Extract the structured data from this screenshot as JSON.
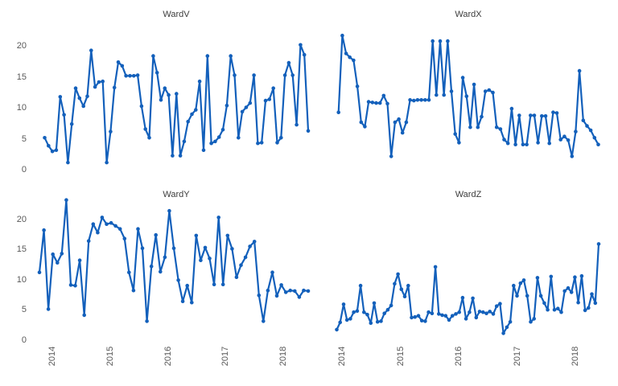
{
  "figure": {
    "background_color": "#ffffff",
    "line_color": "#1360bb",
    "marker_color": "#1360bb",
    "tick_label_color": "#595959",
    "title_color": "#3d3d3d"
  },
  "axes": {
    "y_tick_labels": [
      "0",
      "5",
      "10",
      "15",
      "20"
    ],
    "y_tick_values": [
      0,
      5,
      10,
      15,
      20
    ],
    "x_tick_labels": [
      "2014",
      "2015",
      "2016",
      "2017",
      "2018"
    ],
    "x_tick_values": [
      2014,
      2015,
      2016,
      2017,
      2018
    ],
    "x_tick_rotation": 90,
    "grid": false,
    "legend": false,
    "spines": false
  },
  "chart_data": [
    {
      "type": "line",
      "title": "WardV",
      "position": "top-left",
      "marker": "point",
      "x_start": 2013.87,
      "x_end": 2018.44,
      "ylim": [
        0,
        22
      ],
      "values": [
        5.2,
        3.9,
        3.0,
        3.2,
        11.8,
        8.9,
        1.2,
        7.4,
        13.2,
        11.6,
        10.3,
        11.9,
        19.3,
        13.4,
        14.2,
        14.3,
        1.2,
        6.2,
        13.3,
        17.4,
        16.8,
        15.2,
        15.2,
        15.2,
        15.3,
        10.3,
        6.6,
        5.2,
        18.4,
        15.7,
        11.3,
        13.2,
        12.1,
        2.3,
        12.3,
        2.3,
        4.6,
        7.8,
        9.0,
        9.7,
        14.3,
        3.2,
        18.4,
        4.3,
        4.6,
        5.3,
        6.5,
        10.4,
        18.4,
        15.3,
        5.2,
        9.4,
        10.1,
        10.8,
        15.3,
        4.3,
        4.4,
        11.2,
        11.4,
        13.2,
        4.4,
        5.2,
        15.3,
        17.3,
        15.3,
        7.3,
        20.2,
        18.6,
        6.3
      ]
    },
    {
      "type": "line",
      "title": "WardX",
      "position": "top-right",
      "marker": "point",
      "x_start": 2013.94,
      "x_end": 2018.39,
      "ylim": [
        0,
        22
      ],
      "values": [
        9.3,
        21.7,
        18.8,
        18.2,
        17.7,
        13.5,
        7.7,
        7.0,
        11.0,
        10.9,
        10.8,
        10.8,
        12.0,
        10.7,
        2.2,
        7.7,
        8.2,
        6.0,
        7.7,
        11.3,
        11.2,
        11.3,
        11.3,
        11.3,
        11.3,
        20.8,
        12.1,
        20.8,
        12.1,
        20.8,
        12.7,
        5.8,
        4.4,
        14.9,
        11.9,
        6.9,
        13.8,
        6.9,
        8.6,
        12.7,
        12.9,
        12.5,
        6.9,
        6.6,
        4.9,
        4.3,
        9.9,
        4.1,
        8.8,
        4.1,
        4.1,
        8.8,
        8.8,
        4.4,
        8.7,
        8.7,
        4.3,
        9.3,
        9.2,
        4.9,
        5.4,
        4.8,
        2.2,
        6.2,
        16.0,
        8.0,
        7.1,
        6.4,
        5.2,
        4.1
      ]
    },
    {
      "type": "line",
      "title": "WardY",
      "position": "bottom-left",
      "marker": "point",
      "x_start": 2013.77,
      "x_end": 2018.44,
      "ylim": [
        0,
        23.5
      ],
      "values": [
        11.2,
        18.2,
        5.1,
        14.2,
        12.8,
        14.3,
        23.2,
        9.1,
        9.0,
        13.2,
        4.1,
        16.4,
        19.2,
        17.8,
        20.3,
        19.2,
        19.4,
        18.9,
        18.4,
        16.8,
        11.2,
        8.2,
        18.4,
        15.2,
        3.1,
        12.2,
        17.4,
        11.3,
        13.7,
        21.4,
        15.2,
        9.9,
        6.4,
        9.0,
        6.2,
        17.3,
        13.2,
        15.3,
        13.5,
        9.2,
        20.3,
        9.2,
        17.3,
        15.1,
        10.4,
        12.4,
        13.7,
        15.5,
        16.3,
        7.4,
        3.1,
        8.2,
        11.2,
        7.3,
        9.1,
        7.9,
        8.2,
        8.1,
        7.1,
        8.2,
        8.1
      ]
    },
    {
      "type": "line",
      "title": "WardZ",
      "position": "bottom-right",
      "marker": "point",
      "x_start": 2013.91,
      "x_end": 2018.4,
      "ylim": [
        0,
        23.5
      ],
      "values": [
        1.7,
        2.9,
        5.9,
        3.3,
        3.5,
        4.6,
        4.8,
        9.0,
        4.6,
        4.2,
        2.8,
        6.1,
        3.0,
        3.1,
        4.4,
        5.0,
        5.7,
        9.3,
        10.9,
        8.4,
        7.2,
        9.0,
        3.7,
        3.8,
        4.0,
        3.2,
        3.1,
        4.6,
        4.4,
        12.1,
        4.3,
        4.1,
        4.0,
        3.3,
        4.0,
        4.3,
        4.6,
        7.0,
        3.5,
        4.6,
        6.9,
        3.7,
        4.7,
        4.6,
        4.4,
        4.7,
        4.3,
        5.6,
        6.0,
        1.1,
        2.1,
        3.0,
        9.0,
        7.3,
        9.4,
        9.9,
        7.3,
        3.0,
        3.5,
        10.3,
        7.3,
        6.1,
        5.0,
        10.5,
        5.0,
        5.2,
        4.6,
        8.1,
        8.6,
        7.9,
        10.4,
        6.2,
        10.6,
        4.9,
        5.3,
        7.6,
        6.1,
        15.9
      ]
    }
  ]
}
